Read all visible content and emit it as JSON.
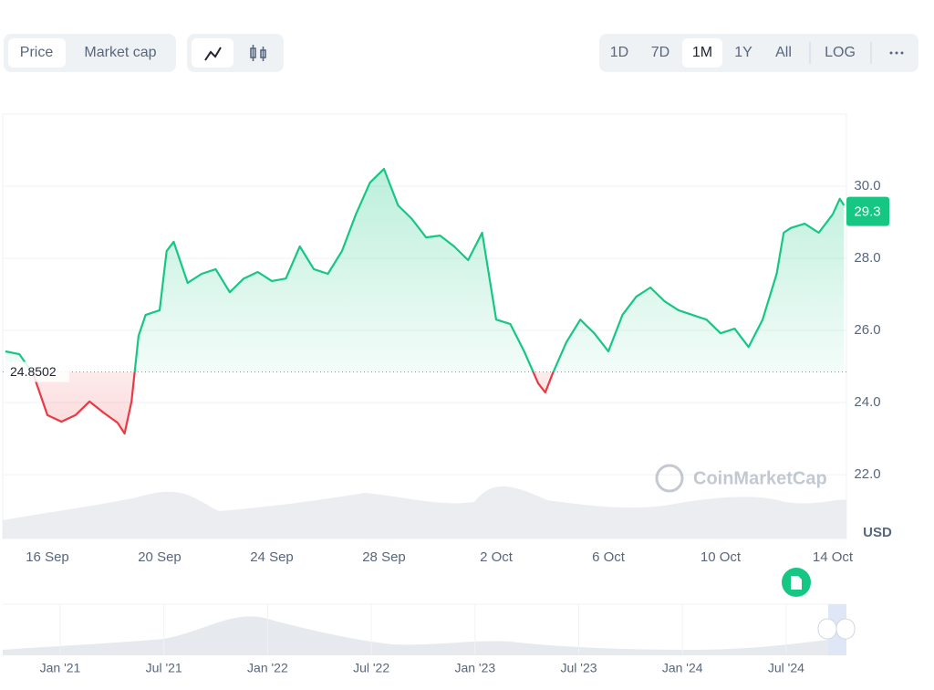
{
  "toolbar": {
    "tabs": [
      "Price",
      "Market cap"
    ],
    "ranges": [
      "1D",
      "7D",
      "1M",
      "1Y",
      "All"
    ],
    "scale": "LOG"
  },
  "chart_data": {
    "type": "line",
    "x": [
      -1.5,
      -1.0,
      -0.5,
      0,
      0.5,
      1.0,
      1.5,
      2.0,
      2.5,
      2.75,
      3.0,
      3.25,
      3.5,
      4.0,
      4.25,
      4.5,
      5.0,
      5.5,
      6.0,
      6.5,
      7.0,
      7.5,
      8.0,
      8.5,
      9.0,
      9.5,
      10.0,
      10.5,
      11.0,
      11.5,
      12.0,
      12.5,
      13.0,
      13.5,
      14.0,
      14.5,
      15.0,
      15.5,
      16.0,
      16.5,
      17.0,
      17.5,
      17.75,
      18.0,
      18.5,
      19.0,
      19.5,
      20.0,
      20.5,
      21.0,
      21.5,
      22.0,
      22.5,
      23.0,
      23.5,
      24.0,
      24.5,
      25.0,
      25.5,
      26.0,
      26.25,
      26.5,
      27.0,
      27.5,
      28.0,
      28.25,
      28.4
    ],
    "values": [
      25.42,
      25.34,
      24.78,
      23.65,
      23.47,
      23.65,
      24.03,
      23.72,
      23.44,
      23.14,
      24.03,
      25.85,
      26.43,
      26.56,
      28.2,
      28.46,
      27.32,
      27.57,
      27.7,
      27.06,
      27.44,
      27.62,
      27.37,
      27.44,
      28.33,
      27.7,
      27.57,
      28.2,
      29.22,
      30.1,
      30.48,
      29.47,
      29.09,
      28.58,
      28.63,
      28.33,
      27.95,
      28.71,
      26.3,
      26.18,
      25.42,
      24.53,
      24.28,
      24.78,
      25.67,
      26.3,
      25.92,
      25.42,
      26.43,
      26.94,
      27.19,
      26.81,
      26.56,
      26.43,
      26.3,
      25.92,
      26.05,
      25.54,
      26.3,
      27.57,
      28.71,
      28.84,
      28.96,
      28.71,
      29.22,
      29.65,
      29.47
    ],
    "baseline": 24.8502,
    "current_price": 29.3,
    "up_color": "#16c784",
    "down_color": "#ea3943",
    "xlim": [
      -1.5935,
      28.488
    ],
    "xticks": [
      {
        "value": 0,
        "label": "16 Sep"
      },
      {
        "value": 4,
        "label": "20 Sep"
      },
      {
        "value": 8,
        "label": "24 Sep"
      },
      {
        "value": 12,
        "label": "28 Sep"
      },
      {
        "value": 16,
        "label": "2 Oct"
      },
      {
        "value": 20,
        "label": "6 Oct"
      },
      {
        "value": 24,
        "label": "10 Oct"
      },
      {
        "value": 28,
        "label": "14 Oct"
      }
    ],
    "ylim": [
      20.23,
      32.0
    ],
    "yticks": [
      {
        "value": 22,
        "label": "22.0"
      },
      {
        "value": 24,
        "label": "24.0"
      },
      {
        "value": 26,
        "label": "26.0"
      },
      {
        "value": 28,
        "label": "28.0"
      },
      {
        "value": 30,
        "label": "30.0"
      }
    ],
    "grid": true,
    "unit": "USD",
    "watermark": "CoinMarketCap"
  },
  "navigator": {
    "labels": [
      "Jan '21",
      "Jul '21",
      "Jan '22",
      "Jul '22",
      "Jan '23",
      "Jul '23",
      "Jan '24",
      "Jul '24"
    ]
  }
}
